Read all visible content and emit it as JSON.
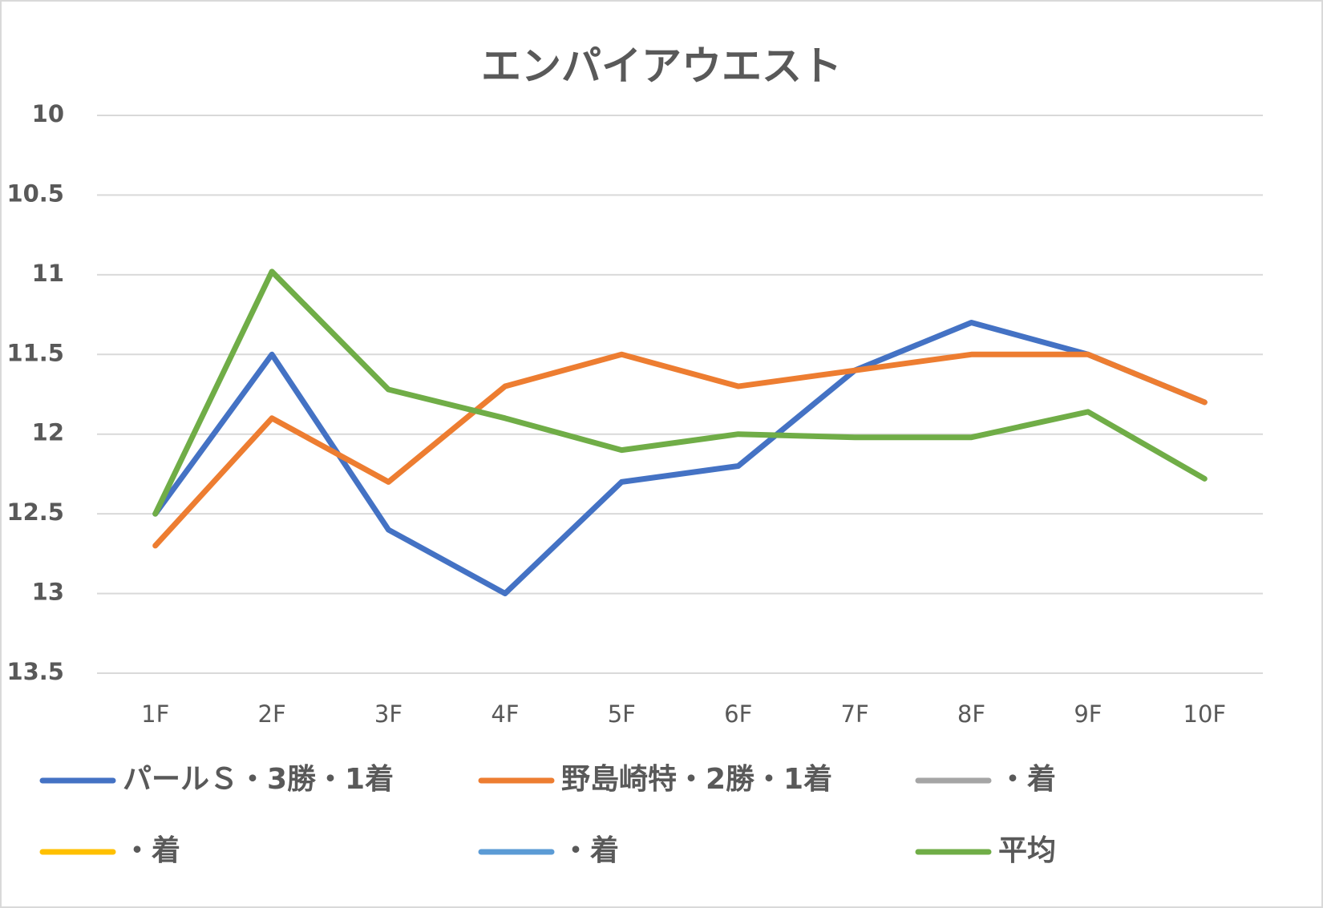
{
  "chart_data": {
    "type": "line",
    "title": "エンパイアウエスト",
    "categories": [
      "1F",
      "2F",
      "3F",
      "4F",
      "5F",
      "6F",
      "7F",
      "8F",
      "9F",
      "10F"
    ],
    "series": [
      {
        "name": "パールＳ・3勝・1着",
        "color": "#4472c4",
        "values": [
          12.5,
          11.5,
          12.6,
          13.0,
          12.3,
          12.2,
          11.6,
          11.3,
          11.5,
          11.8
        ]
      },
      {
        "name": "野島崎特・2勝・1着",
        "color": "#ed7d31",
        "values": [
          12.7,
          11.9,
          12.3,
          11.7,
          11.5,
          11.7,
          11.6,
          11.5,
          11.5,
          11.8
        ]
      },
      {
        "name": "・着",
        "color": "#a5a5a5",
        "values": [
          null,
          null,
          null,
          null,
          null,
          null,
          null,
          null,
          null,
          null
        ]
      },
      {
        "name": "・着",
        "color": "#ffc000",
        "values": [
          null,
          null,
          null,
          null,
          null,
          null,
          null,
          null,
          null,
          null
        ]
      },
      {
        "name": "・着",
        "color": "#5b9bd5",
        "values": [
          null,
          null,
          null,
          null,
          null,
          null,
          null,
          null,
          null,
          null
        ]
      },
      {
        "name": "平均",
        "color": "#70ad47",
        "values": [
          12.5,
          10.98,
          11.72,
          11.9,
          12.1,
          12.0,
          12.02,
          12.02,
          11.86,
          12.28
        ]
      }
    ],
    "ylim": [
      13.5,
      10
    ],
    "yticks": [
      10,
      10.5,
      11,
      11.5,
      12,
      12.5,
      13,
      13.5
    ],
    "grid": true,
    "legend": "bottom"
  }
}
